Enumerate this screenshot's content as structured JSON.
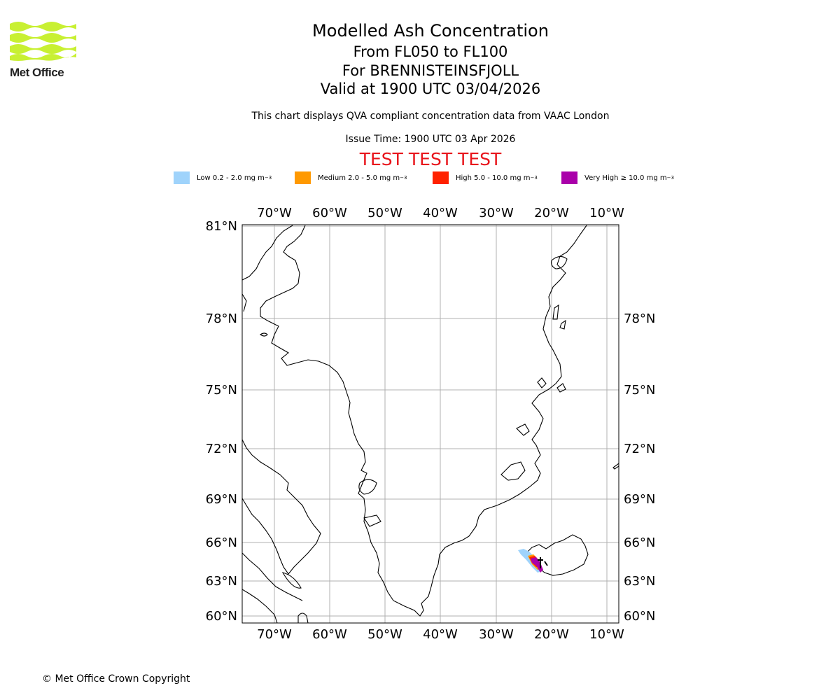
{
  "header": {
    "title": "Modelled Ash Concentration",
    "subtitle_levels": "From FL050 to FL100",
    "subtitle_volcano": "For BRENNISTEINSFJOLL",
    "subtitle_valid": "Valid at 1900 UTC 03/04/2026",
    "description": "This chart displays QVA compliant concentration data from VAAC London",
    "issue_time": "Issue Time: 1900 UTC 03 Apr 2026",
    "test_banner": "TEST TEST TEST"
  },
  "logo": {
    "text": "Met Office",
    "icon": "met-office-wave-logo",
    "color": "#c8f032"
  },
  "legend": [
    {
      "label": "Low 0.2 - 2.0 mg m",
      "unit_sup": "−3",
      "color": "#9fd3fb"
    },
    {
      "label": "Medium 2.0 - 5.0 mg m",
      "unit_sup": "−3",
      "color": "#ff9900"
    },
    {
      "label": "High 5.0 - 10.0 mg m",
      "unit_sup": "−3",
      "color": "#ff2200"
    },
    {
      "label": "Very High  ≥  10.0 mg m",
      "unit_sup": "−3",
      "color": "#aa00aa"
    }
  ],
  "map": {
    "longitude_labels": [
      "70°W",
      "60°W",
      "50°W",
      "40°W",
      "30°W",
      "20°W",
      "10°W"
    ],
    "latitude_labels": [
      "81°N",
      "78°N",
      "75°N",
      "72°N",
      "69°N",
      "66°N",
      "63°N",
      "60°N"
    ],
    "grid": true,
    "coastline_color": "#000000",
    "gridline_color": "#b0b0b0"
  },
  "footer": {
    "copyright": "© Met Office Crown Copyright"
  }
}
